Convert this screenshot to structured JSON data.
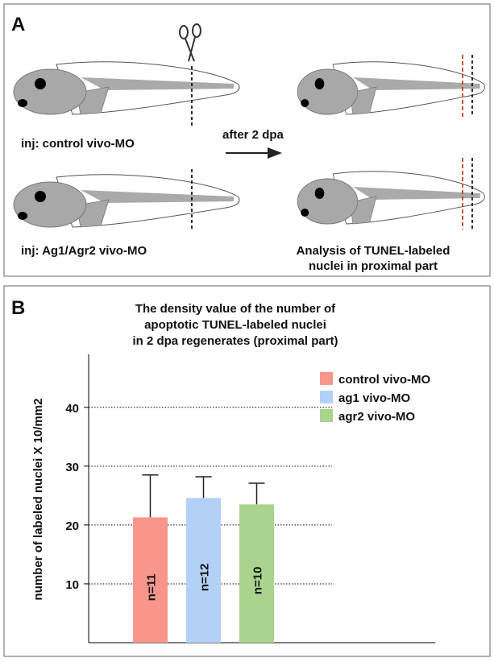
{
  "panel_a": {
    "label": "A",
    "left_top": "inj: control vivo-MO",
    "middle": "after 2 dpa",
    "left_bottom": "inj: Ag1/Agr2 vivo-MO",
    "right_bottom": [
      "Analysis of TUNEL-labeled",
      "nuclei in proximal part"
    ]
  },
  "chart_data": {
    "type": "bar",
    "panel_label": "B",
    "title": [
      "The density value of the number of",
      "apoptotic TUNEL-labeled  nuclei",
      "in 2 dpa regenerates (proximal part)"
    ],
    "y_label": "number of labeled nuclei X 10/mm2",
    "series": [
      {
        "name": "control vivo-MO",
        "color": "#f8968c",
        "values": [
          21.3
        ],
        "errors": [
          7.2
        ],
        "label": "n=11"
      },
      {
        "name": "ag1 vivo-MO",
        "color": "#b3d1f7",
        "values": [
          24.6
        ],
        "errors": [
          3.6
        ],
        "label": "n=12"
      },
      {
        "name": "agr2 vivo-MO",
        "color": "#aad48e",
        "values": [
          23.5
        ],
        "errors": [
          3.6
        ],
        "label": "n=10"
      }
    ],
    "ylim": [
      0,
      49
    ],
    "yticks": [
      10,
      20,
      30,
      40
    ],
    "grid": true
  }
}
